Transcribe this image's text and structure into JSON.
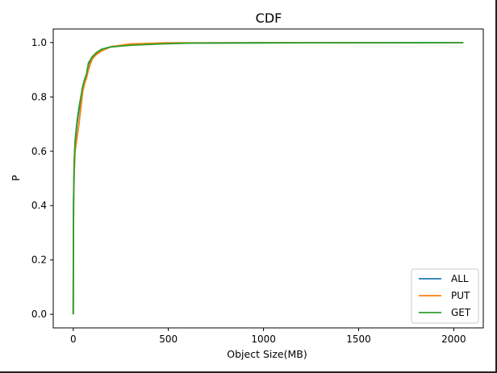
{
  "chart_data": {
    "type": "line",
    "title": "CDF",
    "xlabel": "Object Size(MB)",
    "ylabel": "P",
    "xlim": [
      -105,
      2155
    ],
    "ylim": [
      -0.05,
      1.05
    ],
    "xticks": [
      0,
      500,
      1000,
      1500,
      2000
    ],
    "yticks": [
      0.0,
      0.2,
      0.4,
      0.6,
      0.8,
      1.0
    ],
    "xtick_labels": [
      "0",
      "500",
      "1000",
      "1500",
      "2000"
    ],
    "ytick_labels": [
      "0.0",
      "0.2",
      "0.4",
      "0.6",
      "0.8",
      "1.0"
    ],
    "grid": false,
    "legend_position": "lower-right",
    "series": [
      {
        "name": "ALL",
        "color": "#1f77b4",
        "points": [
          [
            0,
            0
          ],
          [
            1,
            0.3
          ],
          [
            2,
            0.42
          ],
          [
            5,
            0.55
          ],
          [
            10,
            0.63
          ],
          [
            20,
            0.7
          ],
          [
            30,
            0.75
          ],
          [
            40,
            0.79
          ],
          [
            50,
            0.83
          ],
          [
            60,
            0.86
          ],
          [
            70,
            0.88
          ],
          [
            80,
            0.92
          ],
          [
            100,
            0.945
          ],
          [
            120,
            0.96
          ],
          [
            150,
            0.975
          ],
          [
            200,
            0.985
          ],
          [
            300,
            0.993
          ],
          [
            400,
            0.996
          ],
          [
            500,
            0.998
          ],
          [
            1000,
            0.999
          ],
          [
            2050,
            1.0
          ]
        ]
      },
      {
        "name": "PUT",
        "color": "#ff7f0e",
        "points": [
          [
            0,
            0
          ],
          [
            1,
            0.28
          ],
          [
            2,
            0.4
          ],
          [
            5,
            0.52
          ],
          [
            10,
            0.6
          ],
          [
            20,
            0.65
          ],
          [
            30,
            0.7
          ],
          [
            40,
            0.76
          ],
          [
            50,
            0.82
          ],
          [
            60,
            0.85
          ],
          [
            70,
            0.87
          ],
          [
            80,
            0.9
          ],
          [
            100,
            0.94
          ],
          [
            120,
            0.955
          ],
          [
            150,
            0.97
          ],
          [
            200,
            0.985
          ],
          [
            300,
            0.995
          ],
          [
            400,
            0.997
          ],
          [
            480,
            0.999
          ],
          [
            1000,
            0.9995
          ],
          [
            2050,
            1.0
          ]
        ]
      },
      {
        "name": "GET",
        "color": "#2ca02c",
        "points": [
          [
            0,
            0
          ],
          [
            1,
            0.31
          ],
          [
            2,
            0.43
          ],
          [
            5,
            0.56
          ],
          [
            10,
            0.64
          ],
          [
            20,
            0.71
          ],
          [
            30,
            0.76
          ],
          [
            40,
            0.8
          ],
          [
            50,
            0.84
          ],
          [
            60,
            0.865
          ],
          [
            70,
            0.885
          ],
          [
            80,
            0.925
          ],
          [
            100,
            0.948
          ],
          [
            120,
            0.962
          ],
          [
            150,
            0.976
          ],
          [
            200,
            0.984
          ],
          [
            300,
            0.99
          ],
          [
            450,
            0.995
          ],
          [
            600,
            0.998
          ],
          [
            1000,
            0.999
          ],
          [
            2050,
            1.0
          ]
        ]
      }
    ]
  }
}
